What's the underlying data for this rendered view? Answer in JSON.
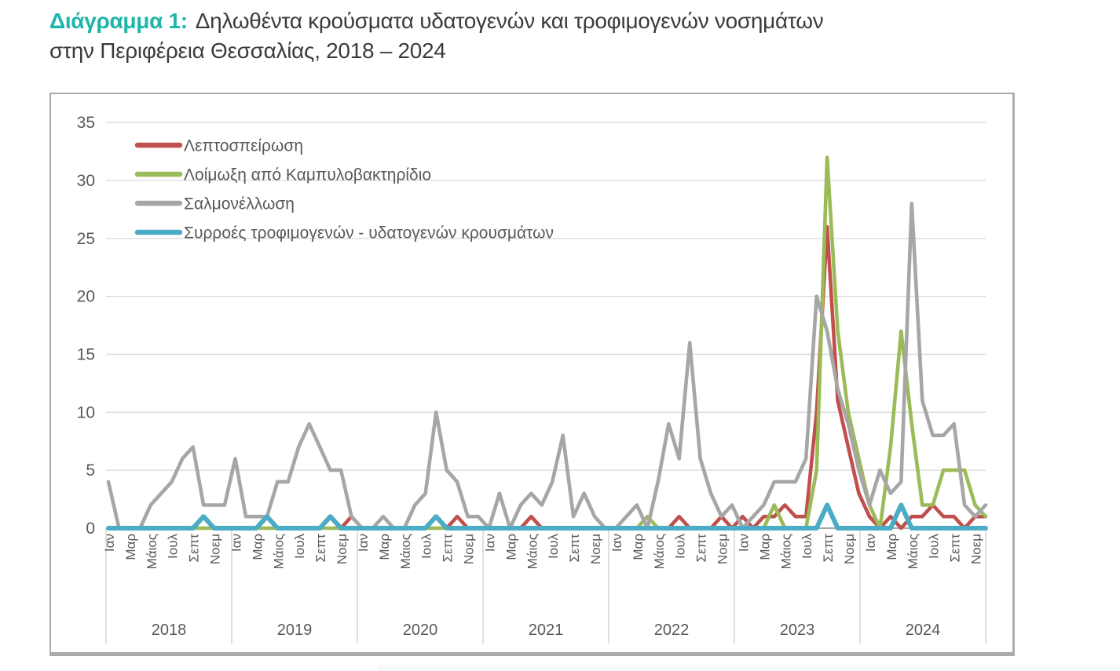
{
  "title": {
    "prefix": "Διάγραμμα 1:",
    "line1": "Δηλωθέντα κρούσματα υδατογενών και τροφιμογενών νοσημάτων",
    "line2": "στην Περιφέρεια Θεσσαλίας, 2018 – 2024"
  },
  "colors": {
    "title_accent": "#1ab5ab",
    "title_text": "#3b3b3b",
    "axis_text": "#595959",
    "gridline": "#d9d9d9",
    "axis_line": "#898989",
    "separator": "#bfbfbf",
    "frame_border": "#a9abad",
    "series_red": "#c0504d",
    "series_green": "#9bbb59",
    "series_gray": "#a6a6a6",
    "series_blue": "#4bacc6"
  },
  "chart_data": {
    "type": "line",
    "title": "Δηλωθέντα κρούσματα υδατογενών και τροφιμογενών νοσημάτων στην Περιφέρεια Θεσσαλίας, 2018 – 2024",
    "x": "monthly, Ιαν 2018 – Δεκ 2024 (84 points per series)",
    "years": [
      "2018",
      "2019",
      "2020",
      "2021",
      "2022",
      "2023",
      "2024"
    ],
    "month_tick_labels": [
      "Ιαν",
      "Μαρ",
      "Μάιος",
      "Ιουλ",
      "Σεπτ",
      "Νοεμ"
    ],
    "ylim": [
      0,
      35
    ],
    "y_ticks": [
      0,
      5,
      10,
      15,
      20,
      25,
      30,
      35
    ],
    "grid": "horizontal",
    "legend_position": "top-left inside plot",
    "series": [
      {
        "name": "Λεπτοσπείρωση",
        "color": "#c0504d",
        "values": [
          0,
          0,
          0,
          0,
          0,
          0,
          0,
          0,
          0,
          1,
          0,
          0,
          0,
          0,
          0,
          1,
          0,
          0,
          0,
          0,
          0,
          1,
          0,
          1,
          0,
          0,
          0,
          0,
          0,
          0,
          0,
          1,
          0,
          1,
          0,
          0,
          0,
          0,
          0,
          0,
          1,
          0,
          0,
          0,
          0,
          0,
          0,
          0,
          0,
          0,
          0,
          0,
          0,
          0,
          1,
          0,
          0,
          0,
          1,
          0,
          1,
          0,
          1,
          1,
          2,
          1,
          1,
          10,
          26,
          11,
          7,
          3,
          1,
          0,
          1,
          0,
          1,
          1,
          2,
          1,
          1,
          0,
          1,
          1
        ]
      },
      {
        "name": "Λοίμωξη από Καμπυλοβακτηρίδιο",
        "color": "#9bbb59",
        "values": [
          0,
          0,
          0,
          0,
          0,
          0,
          0,
          0,
          0,
          0,
          0,
          0,
          0,
          0,
          0,
          0,
          0,
          0,
          0,
          0,
          0,
          0,
          0,
          0,
          0,
          0,
          0,
          0,
          0,
          0,
          0,
          0,
          0,
          0,
          0,
          0,
          0,
          0,
          0,
          0,
          0,
          0,
          0,
          0,
          0,
          0,
          0,
          0,
          0,
          0,
          0,
          1,
          0,
          0,
          0,
          0,
          0,
          0,
          0,
          0,
          0,
          0,
          0,
          2,
          0,
          0,
          0,
          5,
          32,
          17,
          10,
          6,
          2,
          0,
          7,
          17,
          9,
          2,
          2,
          5,
          5,
          5,
          2,
          1
        ]
      },
      {
        "name": "Σαλμονέλλωση",
        "color": "#a6a6a6",
        "values": [
          4,
          0,
          0,
          0,
          2,
          3,
          4,
          6,
          7,
          2,
          2,
          2,
          6,
          1,
          1,
          1,
          4,
          4,
          7,
          9,
          7,
          5,
          5,
          1,
          0,
          0,
          1,
          0,
          0,
          2,
          3,
          10,
          5,
          4,
          1,
          1,
          0,
          3,
          0,
          2,
          3,
          2,
          4,
          8,
          1,
          3,
          1,
          0,
          0,
          1,
          2,
          0,
          4,
          9,
          6,
          16,
          6,
          3,
          1,
          2,
          0,
          1,
          2,
          4,
          4,
          4,
          6,
          20,
          17,
          12,
          9,
          5,
          2,
          5,
          3,
          4,
          28,
          11,
          8,
          8,
          9,
          2,
          1,
          2
        ]
      },
      {
        "name": "Συρροές τροφιμογενών - υδατογενών κρουσμάτων",
        "color": "#4bacc6",
        "values": [
          0,
          0,
          0,
          0,
          0,
          0,
          0,
          0,
          0,
          1,
          0,
          0,
          0,
          0,
          0,
          1,
          0,
          0,
          0,
          0,
          0,
          1,
          0,
          0,
          0,
          0,
          0,
          0,
          0,
          0,
          0,
          1,
          0,
          0,
          0,
          0,
          0,
          0,
          0,
          0,
          0,
          0,
          0,
          0,
          0,
          0,
          0,
          0,
          0,
          0,
          0,
          0,
          0,
          0,
          0,
          0,
          0,
          0,
          0,
          0,
          0,
          0,
          0,
          0,
          0,
          0,
          0,
          0,
          2,
          0,
          0,
          0,
          0,
          0,
          0,
          2,
          0,
          0,
          0,
          0,
          0,
          0,
          0,
          0
        ]
      }
    ]
  }
}
